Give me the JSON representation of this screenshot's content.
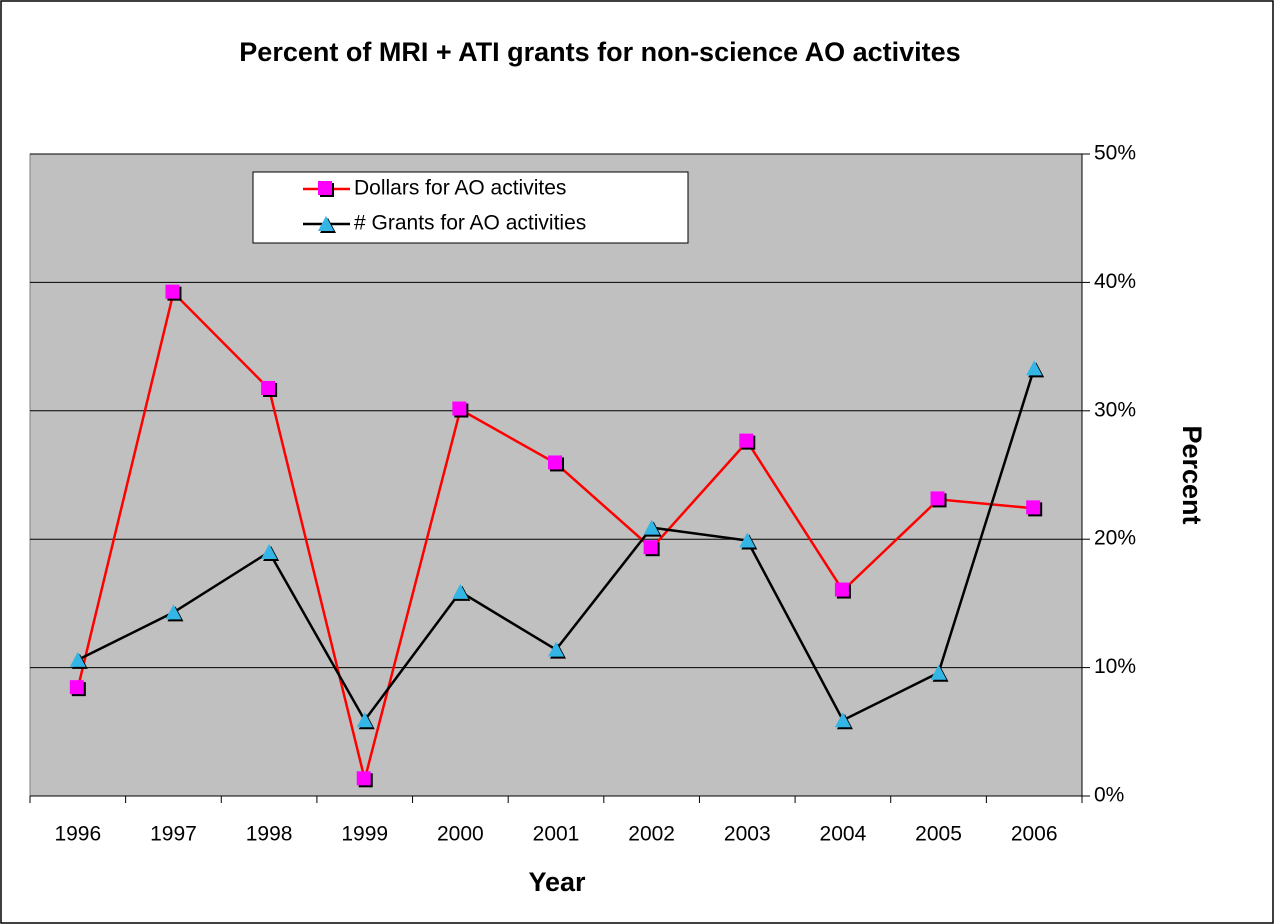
{
  "chart_data": {
    "type": "line",
    "title": "Percent of MRI + ATI grants for non-science AO activites",
    "x_label": "Year",
    "y_label": "Percent",
    "categories": [
      "1996",
      "1997",
      "1998",
      "1999",
      "2000",
      "2001",
      "2002",
      "2003",
      "2004",
      "2005",
      "2006"
    ],
    "series": [
      {
        "name": "Dollars for AO activites",
        "color": "#ff0000",
        "marker": "square",
        "marker_color": "#ff00ff",
        "values": [
          8.4,
          39.2,
          31.7,
          1.3,
          30.1,
          25.9,
          19.3,
          27.6,
          16.0,
          23.1,
          22.4
        ]
      },
      {
        "name": "# Grants for AO activities",
        "color": "#000000",
        "marker": "triangle",
        "marker_color": "#33b5e5",
        "values": [
          10.6,
          14.3,
          19.0,
          5.9,
          15.9,
          11.4,
          20.9,
          19.9,
          5.9,
          9.6,
          33.3
        ]
      }
    ],
    "ylim": [
      0,
      50
    ],
    "yticks": [
      {
        "value": 0,
        "label": "0%"
      },
      {
        "value": 10,
        "label": "10%"
      },
      {
        "value": 20,
        "label": "20%"
      },
      {
        "value": 30,
        "label": "30%"
      },
      {
        "value": 40,
        "label": "40%"
      },
      {
        "value": 50,
        "label": "50%"
      }
    ],
    "y_axis_side": "right",
    "grid": true,
    "plot_background": "#c0c0c0",
    "legend": "upper left"
  }
}
